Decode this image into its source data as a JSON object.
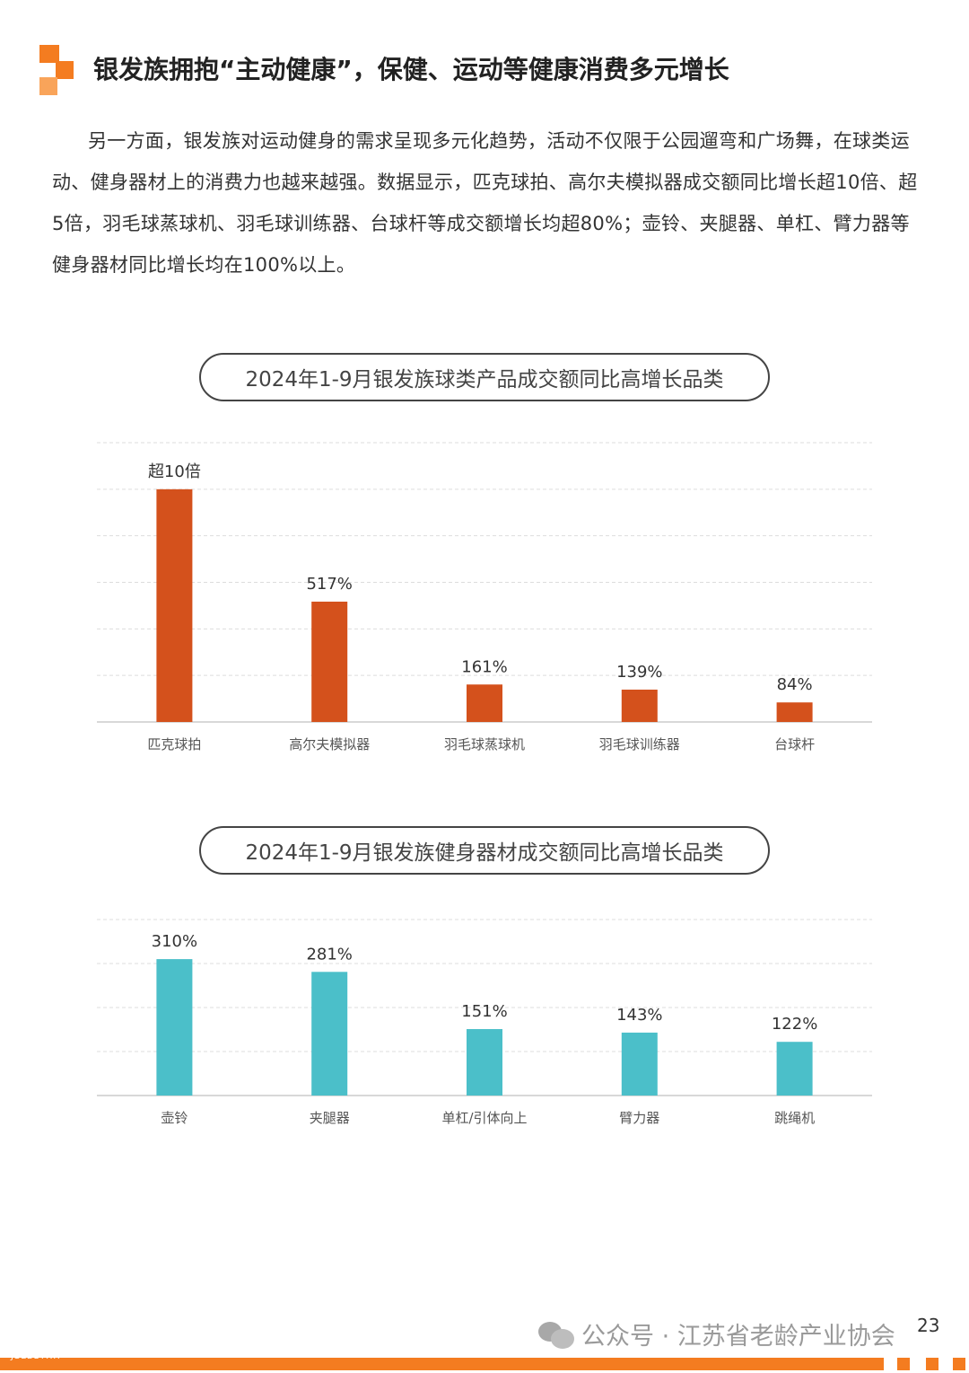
{
  "header": {
    "title": "银发族拥抱“主动健康”，保健、运动等健康消费多元增长"
  },
  "intro": {
    "text": "另一方面，银发族对运动健身的需求呈现多元化趋势，活动不仅限于公园遛弯和广场舞，在球类运动、健身器材上的消费力也越来越强。数据显示，匹克球拍、高尔夫模拟器成交额同比增长超10倍、超5倍，羽毛球蒸球机、羽毛球训练器、台球杆等成交额增长均超80%；壶铃、夹腿器、单杠、臂力器等健身器材同比增长均在100%以上。"
  },
  "chart_data": [
    {
      "type": "bar",
      "title": "2024年1-9月银发族球类产品成交额同比高增长品类",
      "categories": [
        "匹克球拍",
        "高尔夫模拟器",
        "羽毛球蒸球机",
        "羽毛球训练器",
        "台球杆"
      ],
      "values": [
        1000,
        517,
        161,
        139,
        84
      ],
      "data_labels": [
        "超10倍",
        "517%",
        "161%",
        "139%",
        "84%"
      ],
      "unit": "%",
      "ylim": [
        0,
        1200
      ],
      "grid": true,
      "color": "#d4511c"
    },
    {
      "type": "bar",
      "title": "2024年1-9月银发族健身器材成交额同比高增长品类",
      "categories": [
        "壶铃",
        "夹腿器",
        "单杠/引体向上",
        "臂力器",
        "跳绳机"
      ],
      "values": [
        310,
        281,
        151,
        143,
        122
      ],
      "data_labels": [
        "310%",
        "281%",
        "151%",
        "143%",
        "122%"
      ],
      "unit": "%",
      "ylim": [
        0,
        400
      ],
      "grid": true,
      "color": "#4bbfc9"
    }
  ],
  "footer": {
    "watermark": "公众号 · 江苏省老龄产业协会",
    "page_number": "23",
    "code": "JSLLCYXH"
  },
  "colors": {
    "accent": "#f47c20",
    "bar_orange": "#d4511c",
    "bar_teal": "#4bbfc9"
  }
}
